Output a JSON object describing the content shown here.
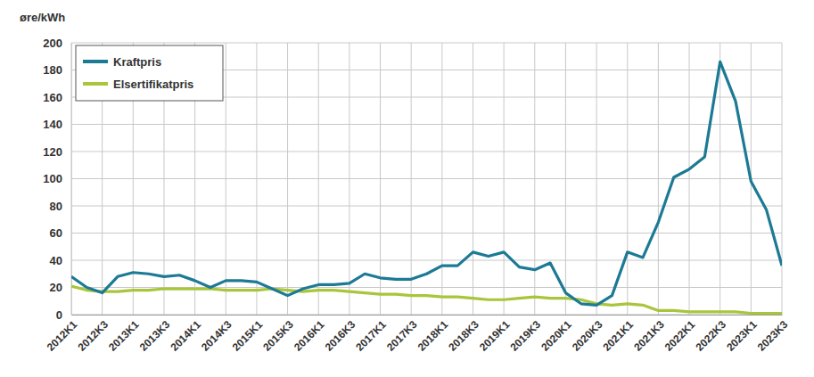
{
  "chart_data": {
    "type": "line",
    "y_label": "øre/kWh",
    "categories": [
      "2012K1",
      null,
      "2012K3",
      null,
      "2013K1",
      null,
      "2013K3",
      null,
      "2014K1",
      null,
      "2014K3",
      null,
      "2015K1",
      null,
      "2015K3",
      null,
      "2016K1",
      null,
      "2016K3",
      null,
      "2017K1",
      null,
      "2017K3",
      null,
      "2018K1",
      null,
      "2018K3",
      null,
      "2019K1",
      null,
      "2019K3",
      null,
      "2020K1",
      null,
      "2020K3",
      null,
      "2021K1",
      null,
      "2021K3",
      null,
      "2022K1",
      null,
      "2022K3",
      null,
      "2023K1",
      null,
      "2023K3"
    ],
    "series": [
      {
        "name": "Kraftpris",
        "color": "#1c7a94",
        "values": [
          28,
          20,
          16,
          28,
          31,
          30,
          28,
          29,
          25,
          20,
          25,
          25,
          24,
          19,
          14,
          19,
          22,
          22,
          23,
          30,
          27,
          26,
          26,
          30,
          36,
          36,
          46,
          43,
          46,
          35,
          33,
          38,
          16,
          8,
          7,
          14,
          46,
          42,
          68,
          101,
          107,
          116,
          186,
          157,
          98,
          77,
          36
        ]
      },
      {
        "name": "Elsertifikatpris",
        "color": "#a9c53b",
        "values": [
          21,
          18,
          17,
          17,
          18,
          18,
          19,
          19,
          19,
          19,
          18,
          18,
          18,
          19,
          18,
          17,
          18,
          18,
          17,
          16,
          15,
          15,
          14,
          14,
          13,
          13,
          12,
          11,
          11,
          12,
          13,
          12,
          12,
          11,
          8,
          7,
          8,
          7,
          3,
          3,
          2,
          2,
          2,
          2,
          1,
          1,
          1
        ]
      }
    ],
    "ylim": [
      0,
      200
    ],
    "yticks": [
      0,
      20,
      40,
      60,
      80,
      100,
      120,
      140,
      160,
      180,
      200
    ],
    "grid": true,
    "legend": "upper left"
  }
}
